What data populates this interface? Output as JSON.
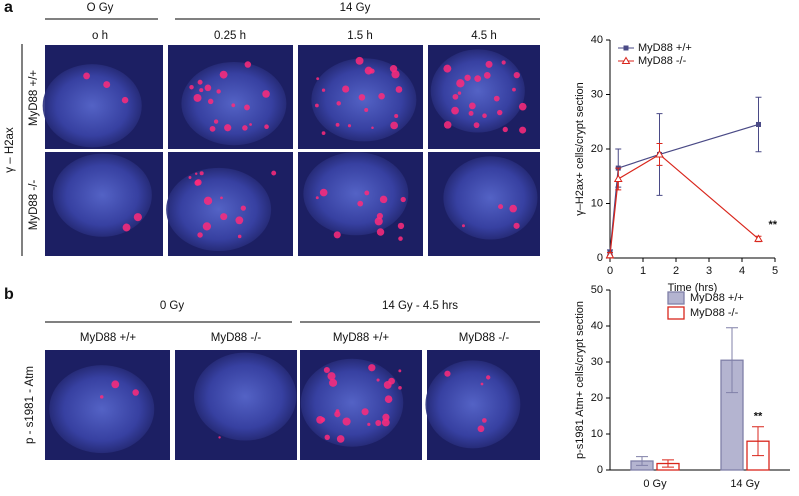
{
  "panel_a": {
    "label": "a",
    "group_headers": [
      "O Gy",
      "14 Gy"
    ],
    "column_headers": [
      "o h",
      "0.25 h",
      "1.5 h",
      "4.5 h"
    ],
    "stain_label": "γ – H2ax",
    "row_labels": [
      "MyD88 +/+",
      "MyD88 -/-"
    ]
  },
  "panel_b": {
    "label": "b",
    "group_headers": [
      "0 Gy",
      "14 Gy - 4.5 hrs"
    ],
    "column_headers": [
      "MyD88 +/+",
      "MyD88 -/-",
      "MyD88 +/+",
      "MyD88 -/-"
    ],
    "stain_label": "p - s1981 - Atm"
  },
  "chart_data": [
    {
      "type": "line",
      "x_label": "Time (hrs)",
      "y_label": "γ–H2ax+ cells/crypt section",
      "x": [
        0,
        0.25,
        1.5,
        4.5
      ],
      "series": [
        {
          "name": "MyD88 +/+",
          "color": "#4a4a86",
          "marker": "square",
          "values": [
            1,
            16.5,
            19,
            24.5
          ],
          "errors": [
            0.5,
            3.5,
            7.5,
            5
          ]
        },
        {
          "name": "MyD88 -/-",
          "color": "#d9261c",
          "marker": "triangle",
          "values": [
            0.5,
            14.5,
            19,
            3.5
          ],
          "errors": [
            0.5,
            2,
            2,
            0.5
          ]
        }
      ],
      "annotation": "**",
      "xlim": [
        0,
        5
      ],
      "xticks": [
        0,
        1,
        2,
        3,
        4,
        5
      ],
      "ylim": [
        0,
        40
      ],
      "yticks": [
        0,
        10,
        20,
        30,
        40
      ],
      "legend": "upper left"
    },
    {
      "type": "bar",
      "y_label": "p-s1981 Atm+ cells/crypt section",
      "categories": [
        "0 Gy",
        "14 Gy"
      ],
      "series": [
        {
          "name": "MyD88 +/+",
          "color": "#b4b4d0",
          "edge_color": "#8080a8",
          "values": [
            2.5,
            30.5
          ],
          "errors": [
            1.2,
            9
          ]
        },
        {
          "name": "MyD88 -/-",
          "color": "#ffffff",
          "edge_color": "#d9261c",
          "values": [
            1.8,
            8
          ],
          "errors": [
            1,
            4
          ]
        }
      ],
      "annotation": "**",
      "ylim": [
        0,
        50
      ],
      "yticks": [
        0,
        10,
        20,
        30,
        40,
        50
      ],
      "legend": "upper right"
    }
  ]
}
